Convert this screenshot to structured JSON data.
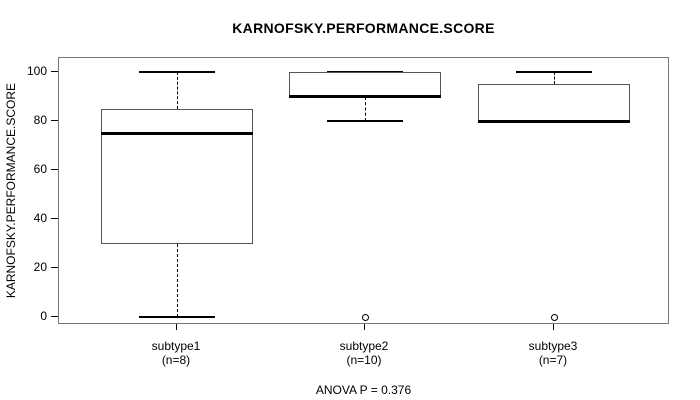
{
  "chart_data": {
    "type": "boxplot",
    "title": "KARNOFSKY.PERFORMANCE.SCORE",
    "ylabel": "KARNOFSKY.PERFORMANCE.SCORE",
    "footer": "ANOVA P = 0.376",
    "ylim": [
      0,
      100
    ],
    "yticks": [
      0,
      20,
      40,
      60,
      80,
      100
    ],
    "grid": false,
    "legend": null,
    "groups": [
      {
        "label": "subtype1",
        "sublabel": "(n=8)",
        "n": 8,
        "q1": 30,
        "median": 75,
        "q3": 85,
        "whisker_low": 0,
        "whisker_high": 100,
        "outliers": []
      },
      {
        "label": "subtype2",
        "sublabel": "(n=10)",
        "n": 10,
        "q1": 90,
        "median": 90,
        "q3": 100,
        "whisker_low": 80,
        "whisker_high": 100,
        "outliers": [
          0
        ]
      },
      {
        "label": "subtype3",
        "sublabel": "(n=7)",
        "n": 7,
        "q1": 80,
        "median": 80,
        "q3": 95,
        "whisker_low": 80,
        "whisker_high": 100,
        "outliers": [
          0
        ]
      }
    ]
  }
}
